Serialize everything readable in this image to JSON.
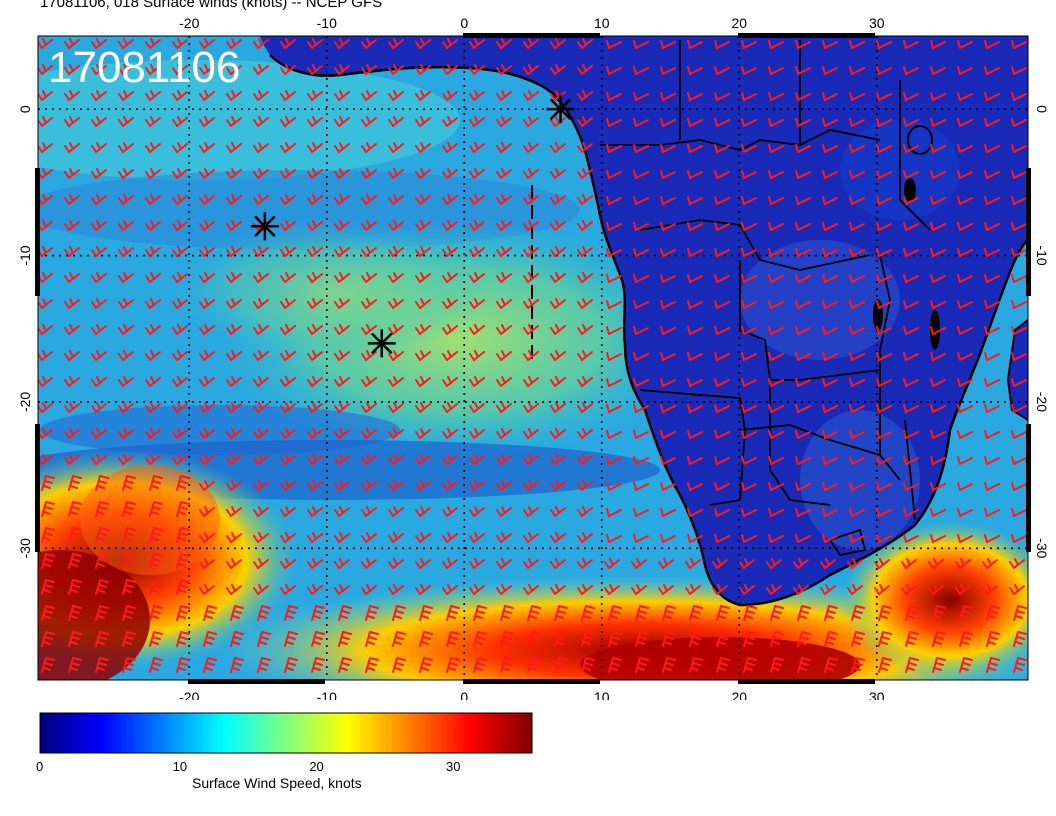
{
  "figure": {
    "title": "17081106, 018 Surface winds (knots) -- NCEP GFS",
    "stamp": "17081106"
  },
  "map": {
    "lon_range": [
      -31,
      41
    ],
    "lat_range": [
      5,
      -39
    ],
    "lon_ticks": [
      "-20",
      "-10",
      "0",
      "10",
      "20",
      "30"
    ],
    "lat_ticks": [
      "0",
      "-10",
      "-20",
      "-30"
    ],
    "lon_tick_values": [
      -20,
      -10,
      0,
      10,
      20,
      30
    ],
    "lat_tick_values": [
      0,
      -10,
      -20,
      -30
    ],
    "grid": "dotted",
    "markers": [
      {
        "name": "marker-1",
        "lon": 7,
        "lat": 0
      },
      {
        "name": "marker-2",
        "lon": -14.5,
        "lat": -8
      },
      {
        "name": "marker-3",
        "lon": -6,
        "lat": -16
      }
    ],
    "barb_color": "#ff1a1a",
    "coast_color": "#000000"
  },
  "colorbar": {
    "title": "Surface Wind Speed, knots",
    "labels": [
      "0",
      "10",
      "20",
      "30"
    ],
    "values": [
      0,
      10,
      20,
      30
    ],
    "max": 36,
    "colormap": [
      "#00007f",
      "#0000ff",
      "#0080ff",
      "#00ffff",
      "#80ff80",
      "#ffff00",
      "#ff8000",
      "#ff0000",
      "#7f0000"
    ]
  }
}
